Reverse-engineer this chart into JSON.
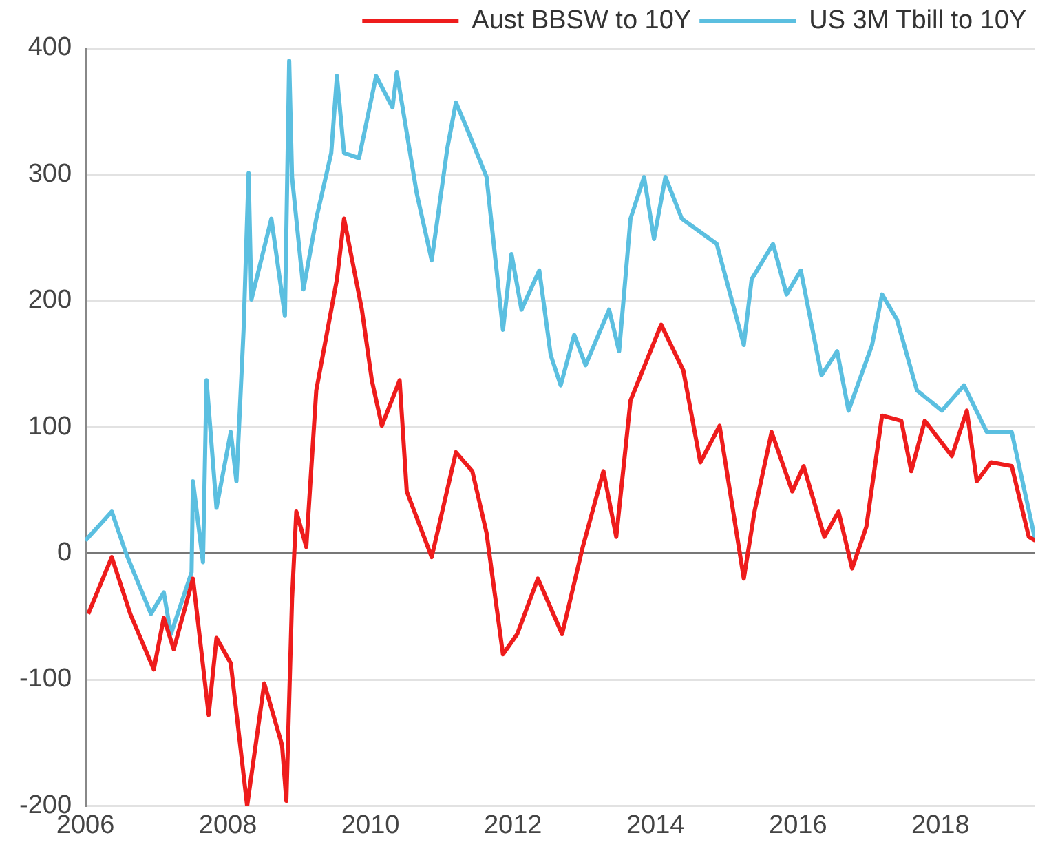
{
  "chart_data": {
    "type": "line",
    "x": [
      2006.0,
      2006.37,
      2006.57,
      2006.92,
      2007.1,
      2007.2,
      2007.49,
      2007.51,
      2007.65,
      2007.7,
      2007.84,
      2008.04,
      2008.12,
      2008.22,
      2008.29,
      2008.33,
      2008.61,
      2008.8,
      2008.86,
      2008.9,
      2009.06,
      2009.24,
      2009.45,
      2009.53,
      2009.63,
      2009.84,
      2010.08,
      2010.31,
      2010.37,
      2010.65,
      2010.86,
      2011.08,
      2011.2,
      2011.35,
      2011.63,
      2011.86,
      2011.98,
      2012.12,
      2012.37,
      2012.53,
      2012.67,
      2012.86,
      2013.02,
      2013.35,
      2013.49,
      2013.65,
      2013.84,
      2013.98,
      2014.14,
      2014.37,
      2014.86,
      2015.24,
      2015.35,
      2015.65,
      2015.84,
      2016.04,
      2016.33,
      2016.55,
      2016.71,
      2017.04,
      2017.18,
      2017.39,
      2017.67,
      2018.02,
      2018.33,
      2018.65,
      2019.0,
      2019.29,
      2019.33
    ],
    "series": [
      {
        "name": "Aust BBSW to 10Y",
        "color": "#ee1c1c",
        "x": [
          2006.04,
          2006.37,
          2006.63,
          2006.96,
          2007.1,
          2007.24,
          2007.51,
          2007.73,
          2007.84,
          2008.04,
          2008.27,
          2008.51,
          2008.76,
          2008.82,
          2008.9,
          2008.96,
          2009.1,
          2009.24,
          2009.53,
          2009.63,
          2009.88,
          2010.02,
          2010.16,
          2010.41,
          2010.51,
          2010.86,
          2011.2,
          2011.43,
          2011.63,
          2011.86,
          2012.06,
          2012.35,
          2012.69,
          2012.98,
          2013.27,
          2013.45,
          2013.65,
          2014.08,
          2014.39,
          2014.63,
          2014.9,
          2015.24,
          2015.39,
          2015.63,
          2015.92,
          2016.08,
          2016.37,
          2016.57,
          2016.76,
          2016.96,
          2017.18,
          2017.45,
          2017.59,
          2017.78,
          2018.16,
          2018.37,
          2018.51,
          2018.71,
          2019.0,
          2019.24,
          2019.33
        ],
        "values": [
          -48,
          -3,
          -48,
          -92,
          -51,
          -76,
          -20,
          -128,
          -67,
          -87,
          -200,
          -103,
          -152,
          -196,
          -36,
          33,
          5,
          129,
          217,
          265,
          193,
          137,
          101,
          137,
          49,
          -3,
          80,
          65,
          16,
          -80,
          -64,
          -20,
          -64,
          5,
          65,
          13,
          121,
          181,
          145,
          72,
          101,
          -20,
          33,
          96,
          49,
          69,
          13,
          33,
          -12,
          21,
          109,
          105,
          65,
          105,
          77,
          113,
          57,
          72,
          69,
          13,
          10
        ]
      },
      {
        "name": "US 3M Tbill to 10Y",
        "color": "#5bbfe0",
        "values": [
          10,
          33,
          0,
          -48,
          -31,
          -64,
          -15,
          57,
          -7,
          137,
          36,
          96,
          57,
          177,
          301,
          201,
          265,
          188,
          390,
          298,
          209,
          265,
          317,
          378,
          317,
          313,
          378,
          353,
          381,
          285,
          232,
          321,
          357,
          337,
          298,
          177,
          237,
          193,
          224,
          157,
          133,
          173,
          149,
          193,
          160,
          265,
          298,
          249,
          298,
          265,
          245,
          165,
          217,
          245,
          205,
          224,
          141,
          160,
          113,
          165,
          205,
          185,
          129,
          113,
          133,
          96,
          96,
          21,
          10
        ]
      }
    ],
    "xlim": [
      2006,
      2019.33
    ],
    "xticks": [
      2006,
      2008,
      2010,
      2012,
      2014,
      2016,
      2018
    ],
    "ylim": [
      -200,
      400
    ],
    "yticks": [
      -200,
      -100,
      0,
      100,
      200,
      300,
      400
    ],
    "grid": "y",
    "legend": "top",
    "marker": "none",
    "line_style": "solid"
  }
}
